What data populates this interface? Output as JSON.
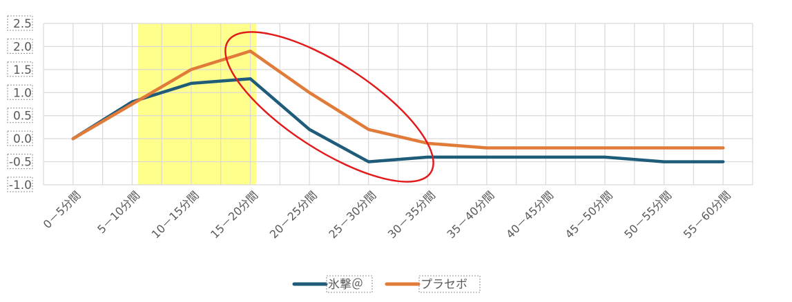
{
  "chart_data": {
    "type": "line",
    "categories": [
      "0－5分間",
      "5－10分間",
      "10－15分間",
      "15－20分間",
      "20－25分間",
      "25－30分間",
      "30－35分間",
      "35－40分間",
      "40－45分間",
      "45－50分間",
      "50－55分間",
      "55－60分間"
    ],
    "series": [
      {
        "name": "氷撃＠",
        "color": "#1f5c7a",
        "values": [
          0,
          0.8,
          1.2,
          1.3,
          0.2,
          -0.5,
          -0.4,
          -0.4,
          -0.4,
          -0.4,
          -0.5,
          -0.5
        ]
      },
      {
        "name": "プラセボ",
        "color": "#e07b39",
        "values": [
          0,
          0.75,
          1.5,
          1.9,
          1.0,
          0.2,
          -0.1,
          -0.2,
          -0.2,
          -0.2,
          -0.2,
          -0.2
        ]
      }
    ],
    "ylim": [
      -1.0,
      2.5
    ],
    "yticks": [
      "2.5",
      "2.0",
      "1.5",
      "1.0",
      "0.5",
      "0.0",
      "-0.5",
      "-1.0"
    ],
    "grid": true,
    "legend_position": "bottom",
    "highlight_color": "#ffff66",
    "annotation_color": "#e31a1c"
  }
}
